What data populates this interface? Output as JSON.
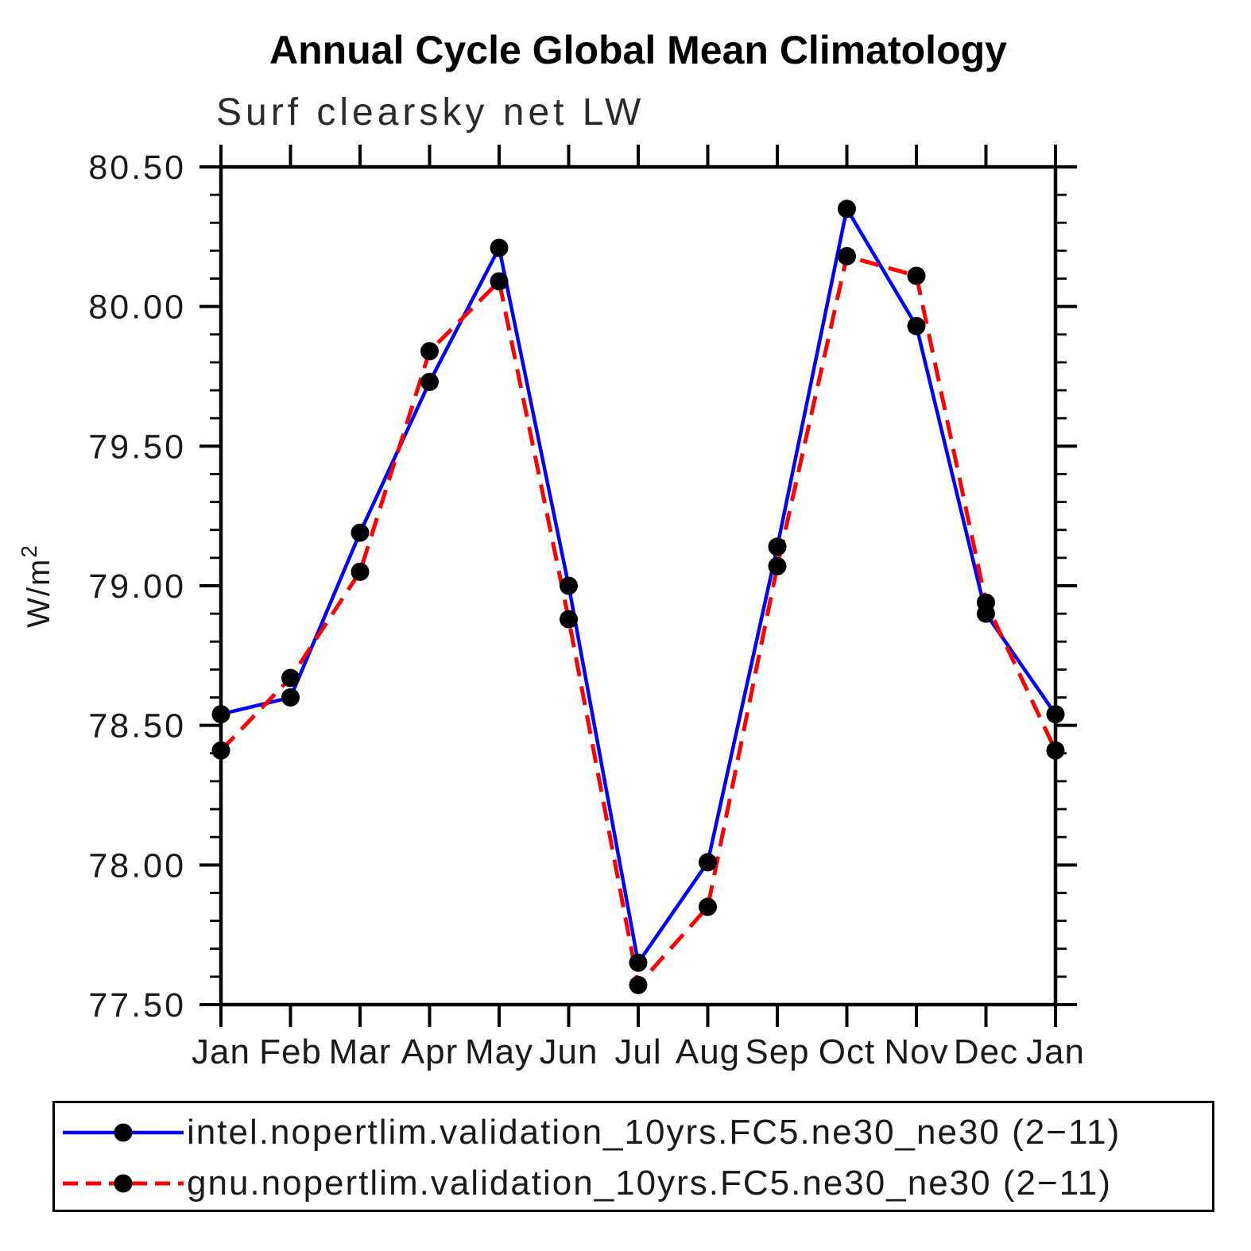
{
  "page": {
    "title": "Annual Cycle Global Mean Climatology",
    "subtitle": "Surf clearsky net LW"
  },
  "chart_data": {
    "type": "line",
    "title": "Annual Cycle Global Mean Climatology",
    "subtitle": "Surf clearsky net LW",
    "xlabel": "",
    "ylabel": "W/m²",
    "categories": [
      "Jan",
      "Feb",
      "Mar",
      "Apr",
      "May",
      "Jun",
      "Jul",
      "Aug",
      "Sep",
      "Oct",
      "Nov",
      "Dec",
      "Jan"
    ],
    "ylim": [
      77.5,
      80.5
    ],
    "y_major_tick_labels": [
      "77.50",
      "78.00",
      "78.50",
      "79.00",
      "79.50",
      "80.00",
      "80.50"
    ],
    "y_major_ticks": [
      77.5,
      78.0,
      78.5,
      79.0,
      79.5,
      80.0,
      80.5
    ],
    "y_minor_step": 0.1,
    "grid": false,
    "legend_position": "bottom",
    "frame_color": "#000000",
    "marker_color": "#000000",
    "series": [
      {
        "name": "intel.nopertlim.validation_10yrs.FC5.ne30_ne30 (2−11)",
        "color": "#0000ff",
        "style": "solid",
        "marker": "circle",
        "values": [
          78.54,
          78.6,
          79.19,
          79.73,
          80.21,
          79.0,
          77.65,
          78.01,
          79.14,
          80.35,
          79.93,
          78.9,
          78.54
        ]
      },
      {
        "name": "gnu.nopertlim.validation_10yrs.FC5.ne30_ne30 (2−11)",
        "color": "#ff0000",
        "style": "dashed",
        "marker": "circle",
        "values": [
          78.41,
          78.67,
          79.05,
          79.84,
          80.09,
          78.88,
          77.57,
          77.85,
          79.07,
          80.18,
          80.11,
          78.94,
          78.41
        ]
      }
    ]
  }
}
